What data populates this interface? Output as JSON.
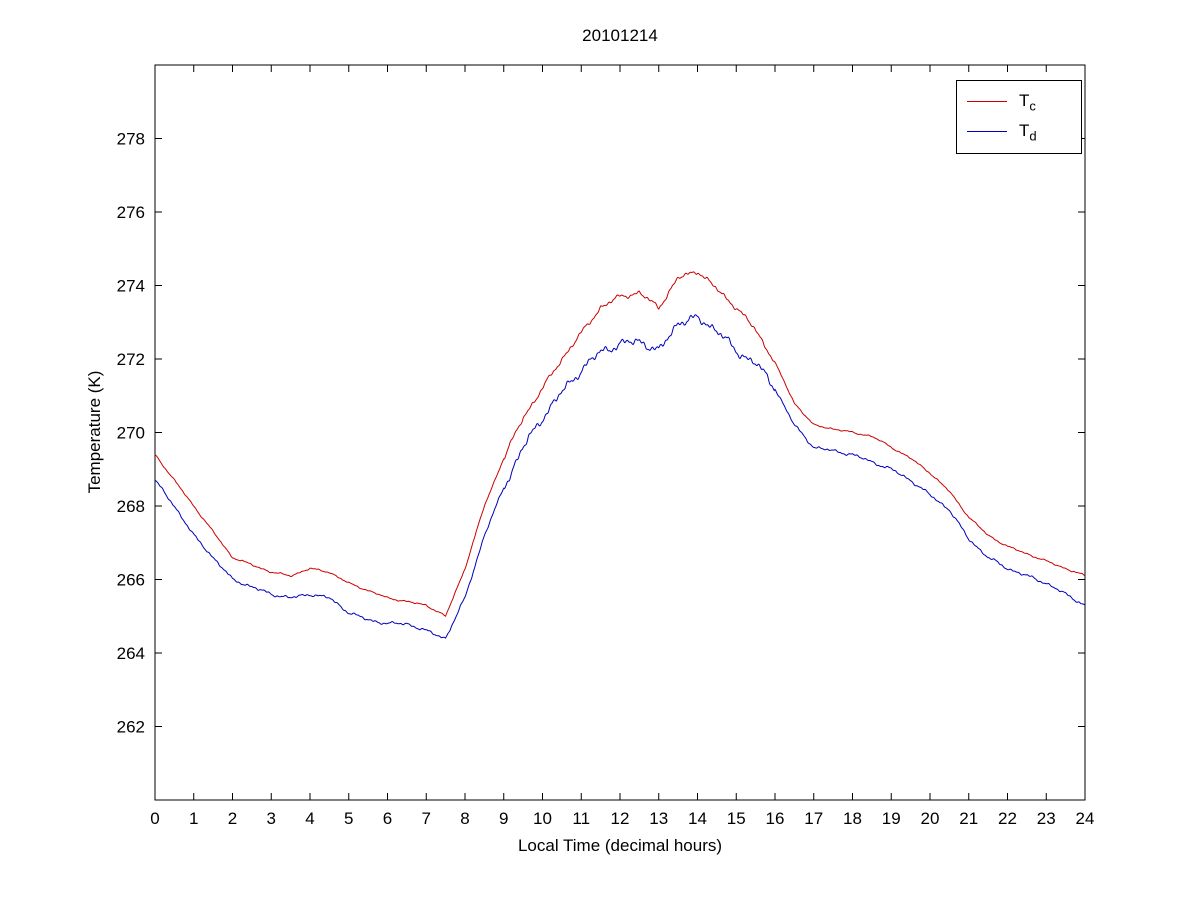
{
  "chart_data": {
    "type": "line",
    "title": "20101214",
    "xlabel": "Local Time (decimal hours)",
    "ylabel": "Temperature (K)",
    "xlim": [
      0,
      24
    ],
    "ylim": [
      260,
      280
    ],
    "xticks": [
      0,
      1,
      2,
      3,
      4,
      5,
      6,
      7,
      8,
      9,
      10,
      11,
      12,
      13,
      14,
      15,
      16,
      17,
      18,
      19,
      20,
      21,
      22,
      23,
      24
    ],
    "yticks": [
      262,
      264,
      266,
      268,
      270,
      272,
      274,
      276,
      278
    ],
    "grid": false,
    "legend_position": "top-right",
    "x": [
      0,
      0.5,
      1,
      1.5,
      2,
      2.5,
      3,
      3.5,
      4,
      4.5,
      5,
      5.5,
      6,
      6.5,
      7,
      7.5,
      8,
      8.5,
      9,
      9.5,
      10,
      10.5,
      11,
      11.5,
      12,
      12.5,
      13,
      13.5,
      14,
      14.5,
      15,
      15.5,
      16,
      16.5,
      17,
      17.5,
      18,
      18.5,
      19,
      19.5,
      20,
      20.5,
      21,
      21.5,
      22,
      22.5,
      23,
      23.5,
      24
    ],
    "series": [
      {
        "name": "T_c",
        "legend_main": "T",
        "legend_sub": "c",
        "color": "#cc0000",
        "noise": 0.035,
        "values": [
          269.4,
          268.7,
          268.0,
          267.3,
          266.6,
          266.4,
          266.2,
          266.1,
          266.3,
          266.2,
          265.9,
          265.7,
          265.5,
          265.4,
          265.3,
          265.0,
          266.3,
          268.0,
          269.3,
          270.4,
          271.2,
          272.0,
          272.7,
          273.4,
          273.7,
          273.8,
          273.4,
          274.2,
          274.4,
          273.9,
          273.4,
          272.8,
          271.9,
          270.8,
          270.2,
          270.1,
          270.0,
          269.9,
          269.6,
          269.3,
          268.9,
          268.4,
          267.7,
          267.2,
          266.9,
          266.7,
          266.5,
          266.3,
          266.1
        ]
      },
      {
        "name": "T_d",
        "legend_main": "T",
        "legend_sub": "d",
        "color": "#0000bb",
        "noise": 0.06,
        "values": [
          268.7,
          268.0,
          267.2,
          266.6,
          266.0,
          265.8,
          265.6,
          265.5,
          265.6,
          265.5,
          265.1,
          264.9,
          264.8,
          264.8,
          264.6,
          264.4,
          265.5,
          267.2,
          268.5,
          269.6,
          270.4,
          271.1,
          271.7,
          272.2,
          272.4,
          272.5,
          272.2,
          273.0,
          273.1,
          272.8,
          272.2,
          271.9,
          271.2,
          270.2,
          269.6,
          269.5,
          269.4,
          269.2,
          269.0,
          268.7,
          268.3,
          267.9,
          267.1,
          266.6,
          266.3,
          266.1,
          265.9,
          265.6,
          265.3
        ]
      }
    ]
  }
}
